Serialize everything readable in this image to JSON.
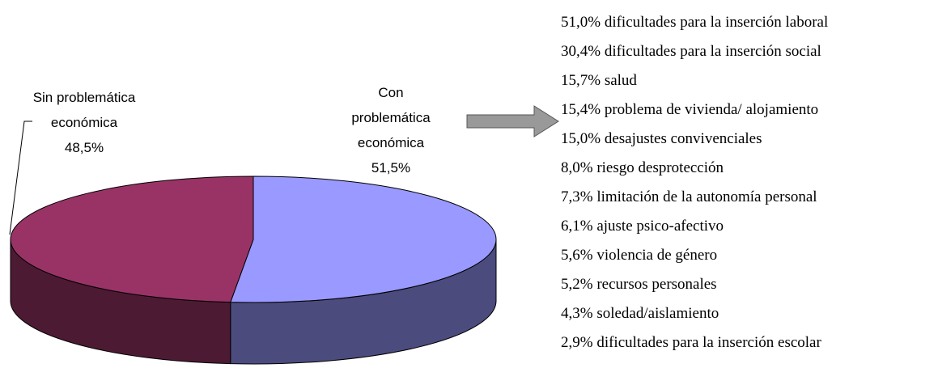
{
  "chart_data": {
    "type": "pie",
    "categories": [
      "Con problemática económica",
      "Sin problemática económica"
    ],
    "values": [
      51.5,
      48.5
    ],
    "value_labels": [
      "51,5%",
      "48,5%"
    ],
    "colors": [
      "#9999ff",
      "#993366"
    ],
    "side_colors": [
      "#4b4b7d",
      "#4d1a33"
    ],
    "details": {
      "categories": [
        "dificultades para la inserción laboral",
        "dificultades para la inserción social",
        "salud",
        "problema de vivienda/ alojamiento",
        "desajustes convivenciales",
        "riesgo desprotección",
        "limitación de la autonomía personal",
        "ajuste psico-afectivo",
        "violencia de género",
        "recursos personales",
        "soledad/aislamiento",
        "dificultades para la inserción escolar"
      ],
      "values": [
        51.0,
        30.4,
        15.7,
        15.4,
        15.0,
        8.0,
        7.3,
        6.1,
        5.6,
        5.2,
        4.3,
        2.9
      ],
      "value_labels": [
        "51,0%",
        "30,4%",
        "15,7%",
        "15,4%",
        "15,0%",
        "8,0%",
        "7,3%",
        "6,1%",
        "5,6%",
        "5,2%",
        "4,3%",
        "2,9%"
      ]
    }
  }
}
